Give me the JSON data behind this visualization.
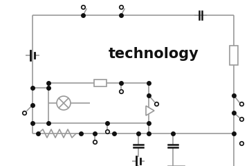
{
  "title": "technology",
  "bg_color": "#ffffff",
  "line_color": "#999999",
  "lw": 1.2,
  "dot_color": "#111111",
  "figsize": [
    3.6,
    2.4
  ],
  "dpi": 100
}
